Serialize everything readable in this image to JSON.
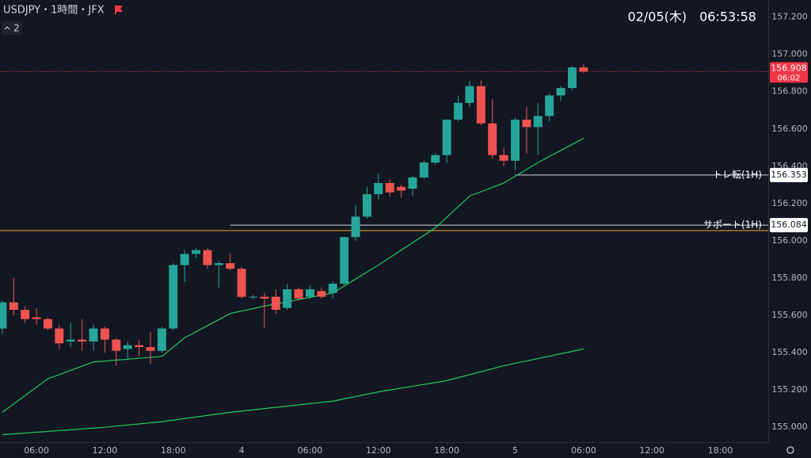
{
  "header": {
    "title": "USDJPY・1時間・JFX",
    "interval_count": "2",
    "clock": "02/05(木)　06:53:58"
  },
  "chart_data": {
    "type": "candlestick",
    "up_color": "#26a69a",
    "down_color": "#ef5350",
    "xlim": [
      2.8,
      70.2
    ],
    "ylim": [
      154.92,
      157.292
    ],
    "xticks": [
      {
        "value": 6,
        "label": "06:00"
      },
      {
        "value": 12,
        "label": "12:00"
      },
      {
        "value": 18,
        "label": "18:00"
      },
      {
        "value": 24,
        "label": "4"
      },
      {
        "value": 30,
        "label": "06:00"
      },
      {
        "value": 36,
        "label": "12:00"
      },
      {
        "value": 42,
        "label": "18:00"
      },
      {
        "value": 48,
        "label": "5"
      },
      {
        "value": 54,
        "label": "06:00"
      },
      {
        "value": 60,
        "label": "12:00"
      },
      {
        "value": 66,
        "label": "18:00"
      }
    ],
    "yticks": [
      {
        "value": 155,
        "label": "155.000"
      },
      {
        "value": 155.2,
        "label": "155.200"
      },
      {
        "value": 155.4,
        "label": "155.400"
      },
      {
        "value": 155.6,
        "label": "155.600"
      },
      {
        "value": 155.8,
        "label": "155.800"
      },
      {
        "value": 156,
        "label": "156.000"
      },
      {
        "value": 156.2,
        "label": "156.200"
      },
      {
        "value": 156.4,
        "label": "156.400"
      },
      {
        "value": 156.6,
        "label": "156.600"
      },
      {
        "value": 156.8,
        "label": "156.800"
      },
      {
        "value": 157,
        "label": "157.000"
      },
      {
        "value": 157.2,
        "label": "157.200"
      }
    ],
    "candles": {
      "x": [
        3,
        4,
        5,
        6,
        7,
        8,
        9,
        10,
        11,
        12,
        13,
        14,
        15,
        16,
        17,
        18,
        19,
        20,
        21,
        22,
        23,
        24,
        25,
        26,
        27,
        28,
        29,
        30,
        31,
        32,
        33,
        34,
        35,
        36,
        37,
        38,
        39,
        40,
        41,
        42,
        43,
        44,
        45,
        46,
        47,
        48,
        49,
        50,
        51,
        52,
        53,
        54
      ],
      "open": [
        155.53,
        155.67,
        155.63,
        155.59,
        155.58,
        155.53,
        155.46,
        155.47,
        155.46,
        155.53,
        155.47,
        155.42,
        155.44,
        155.43,
        155.41,
        155.53,
        155.87,
        155.93,
        155.95,
        155.87,
        155.88,
        155.85,
        155.7,
        155.7,
        155.7,
        155.64,
        155.74,
        155.7,
        155.73,
        155.72,
        155.77,
        156.02,
        156.13,
        156.25,
        156.31,
        156.29,
        156.28,
        156.34,
        156.42,
        156.46,
        156.65,
        156.74,
        156.83,
        156.63,
        156.46,
        156.43,
        156.65,
        156.61,
        156.67,
        156.78,
        156.82,
        156.93
      ],
      "high": [
        155.68,
        155.8,
        155.65,
        155.64,
        155.59,
        155.55,
        155.56,
        155.58,
        155.55,
        155.54,
        155.48,
        155.46,
        155.47,
        155.51,
        155.54,
        155.88,
        155.95,
        155.96,
        155.96,
        155.89,
        155.93,
        155.86,
        155.71,
        155.72,
        155.74,
        155.77,
        155.75,
        155.76,
        155.75,
        155.78,
        156.02,
        156.19,
        156.29,
        156.36,
        156.33,
        156.3,
        156.35,
        156.43,
        156.47,
        156.65,
        156.78,
        156.86,
        156.86,
        156.76,
        156.5,
        156.66,
        156.72,
        156.74,
        156.79,
        156.83,
        156.94,
        156.95
      ],
      "low": [
        155.5,
        155.6,
        155.56,
        155.55,
        155.52,
        155.42,
        155.43,
        155.41,
        155.41,
        155.4,
        155.33,
        155.36,
        155.38,
        155.34,
        155.4,
        155.52,
        155.78,
        155.91,
        155.85,
        155.75,
        155.84,
        155.69,
        155.69,
        155.53,
        155.61,
        155.63,
        155.68,
        155.69,
        155.69,
        155.69,
        155.76,
        156,
        156.12,
        156.22,
        156.24,
        156.23,
        156.24,
        156.33,
        156.41,
        156.42,
        156.64,
        156.72,
        156.62,
        156.44,
        156.4,
        156.38,
        156.47,
        156.46,
        156.64,
        156.75,
        156.81,
        156.9
      ],
      "close": [
        155.67,
        155.63,
        155.58,
        155.58,
        155.53,
        155.45,
        155.47,
        155.46,
        155.53,
        155.47,
        155.41,
        155.44,
        155.43,
        155.41,
        155.53,
        155.87,
        155.93,
        155.95,
        155.87,
        155.88,
        155.85,
        155.7,
        155.7,
        155.69,
        155.63,
        155.74,
        155.69,
        155.74,
        155.7,
        155.77,
        156.02,
        156.13,
        156.25,
        156.31,
        156.26,
        156.27,
        156.34,
        156.42,
        156.46,
        156.65,
        156.74,
        156.83,
        156.63,
        156.46,
        156.43,
        156.65,
        156.61,
        156.67,
        156.78,
        156.82,
        156.93,
        156.908
      ]
    },
    "series": [
      {
        "color": "#22c55e",
        "x": [
          3,
          7,
          11,
          17,
          19,
          23,
          26,
          32,
          36,
          41,
          44,
          47,
          50,
          54
        ],
        "values": [
          155.08,
          155.26,
          155.35,
          155.38,
          155.48,
          155.61,
          155.65,
          155.72,
          155.87,
          156.07,
          156.24,
          156.31,
          156.42,
          156.55
        ]
      },
      {
        "color": "#22c55e",
        "x": [
          3,
          12,
          17,
          23,
          32,
          36,
          42,
          47,
          54
        ],
        "values": [
          154.96,
          155,
          155.03,
          155.08,
          155.14,
          155.19,
          155.25,
          155.33,
          155.42
        ]
      }
    ],
    "price_line": {
      "value": 156.908,
      "countdown": "06:02",
      "color": "#f23645"
    },
    "plain_line": {
      "value": 156.055,
      "color": "#f5a623"
    },
    "levels": [
      {
        "label": "トレ転(1H)",
        "value": 156.353,
        "x_start": 48
      },
      {
        "label": "サポート(1H)",
        "value": 156.084,
        "x_start": 23
      }
    ]
  }
}
